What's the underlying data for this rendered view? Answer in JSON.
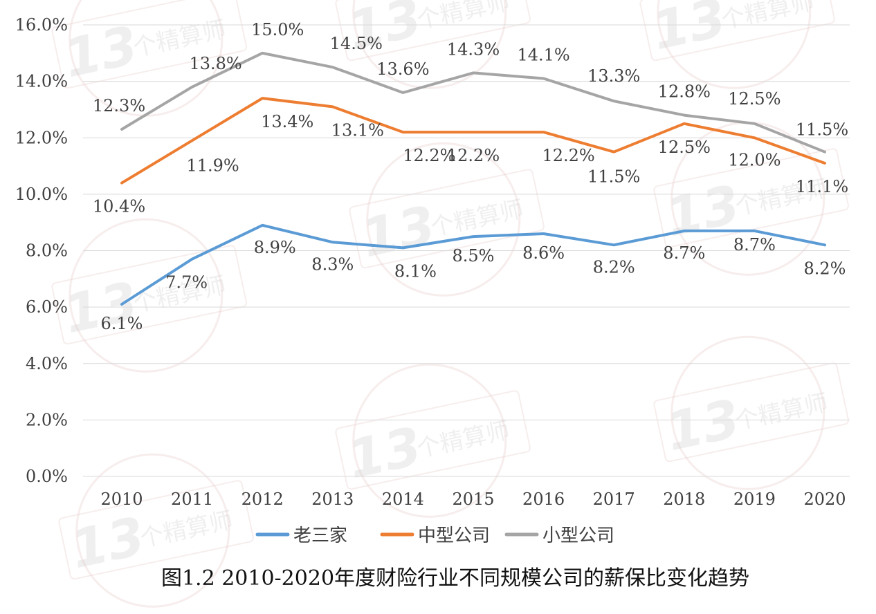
{
  "chart_data": {
    "type": "line",
    "title": "",
    "xlabel": "",
    "ylabel": "",
    "x": [
      "2010",
      "2011",
      "2012",
      "2013",
      "2014",
      "2015",
      "2016",
      "2017",
      "2018",
      "2019",
      "2020"
    ],
    "ylim": [
      0,
      16
    ],
    "yticks": [
      "0.0%",
      "2.0%",
      "4.0%",
      "6.0%",
      "8.0%",
      "10.0%",
      "12.0%",
      "14.0%",
      "16.0%"
    ],
    "grid": "horizontal",
    "legend": "bottom",
    "series": [
      {
        "name": "老三家",
        "color": "#5B9BD5",
        "values": [
          6.1,
          7.7,
          8.9,
          8.3,
          8.1,
          8.5,
          8.6,
          8.2,
          8.7,
          8.7,
          8.2
        ],
        "labels": [
          "6.1%",
          "7.7%",
          "8.9%",
          "8.3%",
          "8.1%",
          "8.5%",
          "8.6%",
          "8.2%",
          "8.7%",
          "8.7%",
          "8.2%"
        ]
      },
      {
        "name": "中型公司",
        "color": "#ED7D31",
        "values": [
          10.4,
          11.9,
          13.4,
          13.1,
          12.2,
          12.2,
          12.2,
          11.5,
          12.5,
          12.0,
          11.1
        ],
        "labels": [
          "10.4%",
          "11.9%",
          "13.4%",
          "13.1%",
          "12.2%",
          "12.2%",
          "12.2%",
          "11.5%",
          "12.5%",
          "12.0%",
          "11.1%"
        ]
      },
      {
        "name": "小型公司",
        "color": "#A5A5A5",
        "values": [
          12.3,
          13.8,
          15.0,
          14.5,
          13.6,
          14.3,
          14.1,
          13.3,
          12.8,
          12.5,
          11.5
        ],
        "labels": [
          "12.3%",
          "13.8%",
          "15.0%",
          "14.5%",
          "13.6%",
          "14.3%",
          "14.1%",
          "13.3%",
          "12.8%",
          "12.5%",
          "11.5%"
        ]
      }
    ]
  },
  "caption": "图1.2  2010-2020年度财险行业不同规模公司的薪保比变化趋势",
  "watermark": {
    "number": "13",
    "text": "个精算师"
  },
  "colors": {
    "grid": "#d9d9d9",
    "text": "#404040",
    "watermark": "#c9c9c9"
  }
}
